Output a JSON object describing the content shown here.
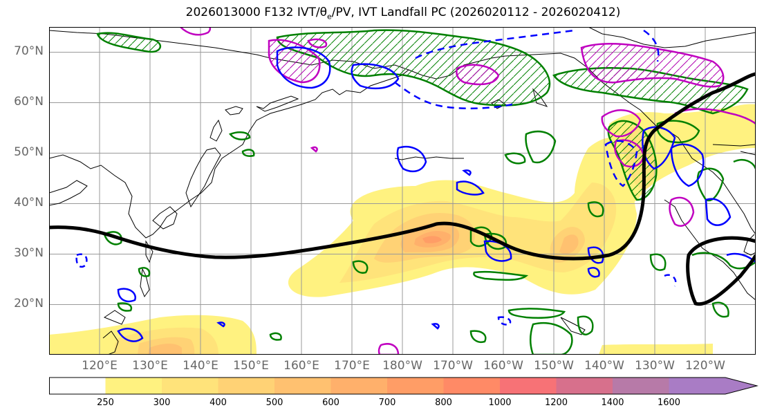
{
  "title": {
    "prefix": "2026013000 F132 IVT/θ",
    "sub": "e",
    "suffix": "/PV, IVT Landfall PC (2026020112 - 2026020412)"
  },
  "map": {
    "lat_range": [
      10,
      75
    ],
    "lon_range": [
      110,
      250
    ],
    "lat_labels": [
      {
        "lat": 70,
        "text": "70°N"
      },
      {
        "lat": 60,
        "text": "60°N"
      },
      {
        "lat": 50,
        "text": "50°N"
      },
      {
        "lat": 40,
        "text": "40°N"
      },
      {
        "lat": 30,
        "text": "30°N"
      },
      {
        "lat": 20,
        "text": "20°N"
      }
    ],
    "lon_labels": [
      {
        "lon": 120,
        "text": "120°E"
      },
      {
        "lon": 130,
        "text": "130°E"
      },
      {
        "lon": 140,
        "text": "140°E"
      },
      {
        "lon": 150,
        "text": "150°E"
      },
      {
        "lon": 160,
        "text": "160°E"
      },
      {
        "lon": 170,
        "text": "170°E"
      },
      {
        "lon": 180,
        "text": "180°W"
      },
      {
        "lon": 190,
        "text": "170°W"
      },
      {
        "lon": 200,
        "text": "160°W"
      },
      {
        "lon": 210,
        "text": "150°W"
      },
      {
        "lon": 220,
        "text": "140°W"
      },
      {
        "lon": 230,
        "text": "130°W"
      },
      {
        "lon": 240,
        "text": "120°W"
      }
    ],
    "colors": {
      "land_outline": "#000000",
      "grid": "#999999",
      "ivt_contour": "#000000",
      "pv_contour": "#0000ff",
      "theta_e_contour": "#008000",
      "magenta_contour": "#c000c0"
    }
  },
  "colorbar": {
    "ticks": [
      "250",
      "300",
      "400",
      "500",
      "600",
      "700",
      "800",
      "1000",
      "1200",
      "1400",
      "1600"
    ],
    "colors": [
      "#ffffff",
      "#fff280",
      "#ffe37a",
      "#ffd275",
      "#ffc170",
      "#ffb06b",
      "#ff9d66",
      "#ff8a66",
      "#f77276",
      "#d7708c",
      "#b77aa8",
      "#a97cc5"
    ],
    "extend": "max"
  }
}
